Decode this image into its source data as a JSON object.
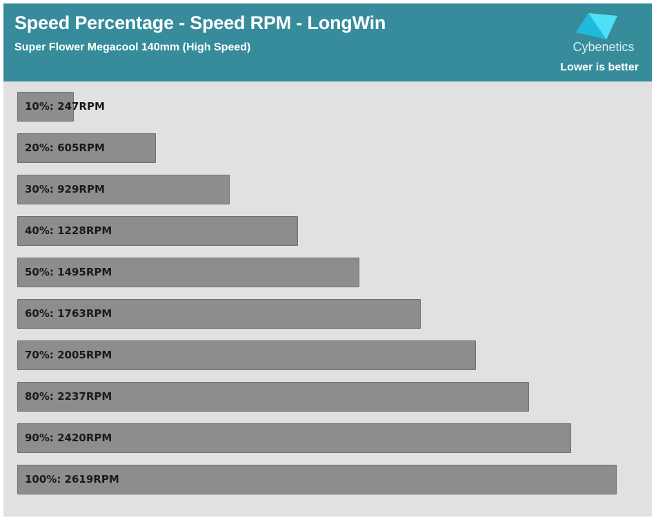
{
  "header": {
    "title": "Speed Percentage - Speed RPM - LongWin",
    "subtitle": "Super Flower Megacool 140mm (High Speed)",
    "logo_text": "Cybenetics",
    "note": "Lower is better"
  },
  "colors": {
    "header_bg": "#368c9b",
    "plot_bg": "#e1e1e1",
    "bar_fill": "#8d8d8d",
    "logo_cyan": "#37d2f0"
  },
  "chart_data": {
    "type": "bar",
    "orientation": "horizontal",
    "title": "Speed Percentage - Speed RPM - LongWin",
    "subtitle": "Super Flower Megacool 140mm (High Speed)",
    "categories": [
      "10%",
      "20%",
      "30%",
      "40%",
      "50%",
      "60%",
      "70%",
      "80%",
      "90%",
      "100%"
    ],
    "values": [
      247,
      605,
      929,
      1228,
      1495,
      1763,
      2005,
      2237,
      2420,
      2619
    ],
    "labels": [
      "10%: 247RPM",
      "20%: 605RPM",
      "30%: 929RPM",
      "40%: 1228RPM",
      "50%: 1495RPM",
      "60%: 1763RPM",
      "70%: 2005RPM",
      "80%: 2237RPM",
      "90%: 2420RPM",
      "100%: 2619RPM"
    ],
    "unit": "RPM",
    "xlim": [
      0,
      2619
    ],
    "grid": false,
    "legend": "none"
  }
}
